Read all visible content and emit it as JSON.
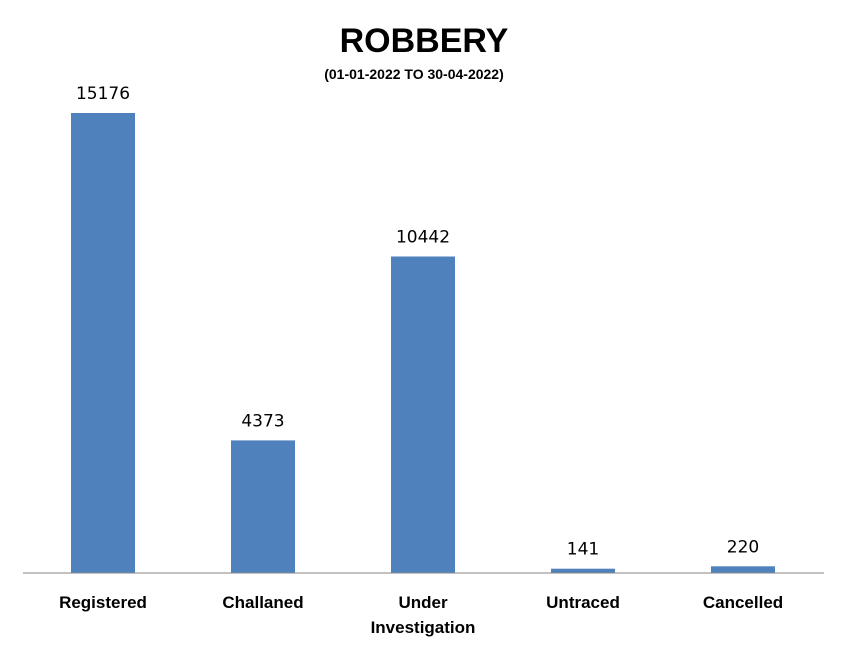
{
  "chart_data": {
    "type": "bar",
    "title": "ROBBERY",
    "subtitle": "(01-01-2022 TO 30-04-2022)",
    "categories": [
      "Registered",
      "Challaned",
      "Under Investigation",
      "Untraced",
      "Cancelled"
    ],
    "category_lines": [
      [
        "Registered"
      ],
      [
        "Challaned"
      ],
      [
        "Under",
        "Investigation"
      ],
      [
        "Untraced"
      ],
      [
        "Cancelled"
      ]
    ],
    "values": [
      15176,
      4373,
      10442,
      141,
      220
    ],
    "data_labels": [
      "15176",
      "4373",
      "10442",
      "141",
      "220"
    ],
    "xlabel": "",
    "ylabel": "",
    "ylim": [
      0,
      15176
    ],
    "grid": false,
    "legend": "none",
    "bar_color": "#4F81BD"
  }
}
